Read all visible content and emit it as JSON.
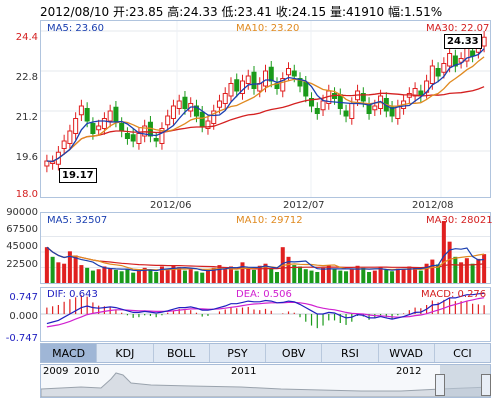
{
  "header": {
    "date": "2012/08/10",
    "open_label": "开:",
    "open": "23.85",
    "high_label": "高:",
    "high": "24.33",
    "low_label": "低:",
    "low": "23.41",
    "close_label": "收:",
    "close": "24.15",
    "vol_label": "量:",
    "vol": "41910",
    "chg_label": "幅:",
    "chg": "1.51%"
  },
  "price_panel": {
    "ma5": "MA5: 23.60",
    "ma10": "MA10: 23.20",
    "ma30": "MA30: 22.07",
    "high_tag": "24.33",
    "low_tag": "19.17",
    "y_ticks": [
      "24.4",
      "22.8",
      "21.2",
      "19.6",
      "18.0"
    ]
  },
  "volume_panel": {
    "ma5": "MA5: 32507",
    "ma10": "MA10: 29712",
    "ma30": "MA30: 28021",
    "y_ticks": [
      "90000",
      "67500",
      "45000",
      "22500"
    ]
  },
  "macd_panel": {
    "dif": "DIF: 0.643",
    "dea": "DEA: 0.506",
    "macd": "MACD: 0.276",
    "y_ticks": [
      "0.747",
      "0.000",
      "-0.747"
    ]
  },
  "x_labels": [
    "2012/06",
    "2012/07",
    "2012/08"
  ],
  "tabs": [
    "MACD",
    "KDJ",
    "BOLL",
    "PSY",
    "OBV",
    "RSI",
    "WVAD",
    "CCI"
  ],
  "navigator": {
    "labels": [
      "2009",
      "2010",
      "2011",
      "2012"
    ]
  },
  "colors": {
    "up": "#e02020",
    "down": "#1a9a1a",
    "ma5": "#1a3fb0",
    "ma10": "#e08a20",
    "ma30": "#d42020",
    "dif": "#2020c0",
    "dea": "#d020d0",
    "panel_border": "#b0c4de"
  },
  "chart_data": {
    "type": "candlestick",
    "title": "",
    "ylim": [
      18.0,
      24.4
    ],
    "close": [
      19.2,
      19.17,
      19.55,
      20.0,
      20.4,
      20.9,
      21.4,
      20.8,
      20.3,
      20.6,
      20.9,
      21.2,
      20.8,
      20.4,
      20.1,
      20.0,
      20.3,
      20.6,
      20.2,
      20.0,
      20.5,
      21.0,
      21.4,
      21.6,
      21.3,
      21.5,
      21.0,
      20.6,
      20.8,
      21.2,
      21.6,
      21.9,
      22.3,
      22.0,
      22.4,
      22.6,
      22.1,
      22.3,
      22.8,
      22.4,
      22.1,
      22.5,
      22.9,
      22.6,
      22.2,
      21.8,
      21.4,
      21.1,
      21.6,
      22.0,
      21.7,
      21.3,
      21.0,
      21.5,
      22.0,
      21.6,
      21.1,
      21.4,
      21.8,
      21.2,
      21.0,
      21.4,
      21.6,
      21.9,
      22.1,
      21.8,
      22.4,
      23.0,
      22.6,
      23.1,
      23.5,
      23.0,
      23.3,
      23.7,
      23.4,
      23.9,
      24.15
    ],
    "volume": [
      52000,
      38000,
      30000,
      28000,
      46000,
      40000,
      26000,
      22000,
      18000,
      20000,
      24000,
      21000,
      19000,
      17000,
      20000,
      15000,
      18000,
      22000,
      19000,
      16000,
      24000,
      21000,
      26000,
      23000,
      18000,
      20000,
      17000,
      15000,
      19000,
      22000,
      26000,
      21000,
      24000,
      18000,
      30000,
      22000,
      19000,
      25000,
      28000,
      21000,
      16000,
      52000,
      38000,
      26000,
      24000,
      20000,
      18000,
      16000,
      22000,
      26000,
      20000,
      18000,
      17000,
      21000,
      25000,
      22000,
      16000,
      18000,
      23000,
      19000,
      17000,
      21000,
      20000,
      24000,
      22000,
      18000,
      28000,
      34000,
      27000,
      90000,
      60000,
      38000,
      30000,
      36000,
      28000,
      35000,
      41910
    ],
    "dif": [
      -0.3,
      -0.25,
      -0.2,
      -0.1,
      0.0,
      0.1,
      0.2,
      0.25,
      0.2,
      0.18,
      0.2,
      0.22,
      0.2,
      0.15,
      0.1,
      0.05,
      0.05,
      0.08,
      0.06,
      0.03,
      0.06,
      0.1,
      0.15,
      0.2,
      0.2,
      0.22,
      0.18,
      0.12,
      0.12,
      0.15,
      0.2,
      0.25,
      0.32,
      0.32,
      0.36,
      0.4,
      0.38,
      0.38,
      0.42,
      0.4,
      0.35,
      0.36,
      0.4,
      0.38,
      0.3,
      0.2,
      0.1,
      0.0,
      0.0,
      0.05,
      0.03,
      -0.05,
      -0.12,
      -0.1,
      -0.02,
      -0.04,
      -0.12,
      -0.12,
      -0.08,
      -0.12,
      -0.16,
      -0.12,
      -0.08,
      -0.02,
      0.05,
      0.06,
      0.15,
      0.28,
      0.3,
      0.4,
      0.5,
      0.5,
      0.55,
      0.6,
      0.6,
      0.63,
      0.643
    ],
    "dea": [
      -0.4,
      -0.37,
      -0.34,
      -0.29,
      -0.23,
      -0.16,
      -0.09,
      -0.02,
      0.02,
      0.05,
      0.08,
      0.11,
      0.13,
      0.13,
      0.12,
      0.11,
      0.1,
      0.1,
      0.09,
      0.08,
      0.08,
      0.08,
      0.1,
      0.12,
      0.14,
      0.16,
      0.16,
      0.16,
      0.15,
      0.15,
      0.16,
      0.18,
      0.21,
      0.23,
      0.26,
      0.29,
      0.31,
      0.32,
      0.34,
      0.35,
      0.35,
      0.35,
      0.36,
      0.36,
      0.35,
      0.32,
      0.28,
      0.22,
      0.18,
      0.15,
      0.13,
      0.09,
      0.05,
      0.02,
      0.01,
      0.0,
      -0.03,
      -0.05,
      -0.06,
      -0.07,
      -0.09,
      -0.1,
      -0.09,
      -0.08,
      -0.05,
      -0.03,
      0.01,
      0.07,
      0.12,
      0.18,
      0.25,
      0.3,
      0.35,
      0.4,
      0.44,
      0.48,
      0.506
    ]
  }
}
